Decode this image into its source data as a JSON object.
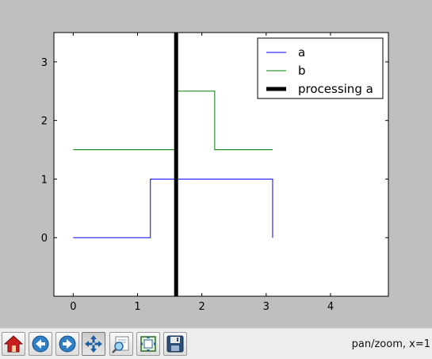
{
  "window": {
    "background": "#bfbfbf"
  },
  "chart_data": {
    "type": "line",
    "xlim": [
      -0.3,
      4.9
    ],
    "ylim": [
      -1,
      3.5
    ],
    "xticks": [
      0,
      1,
      2,
      3,
      4
    ],
    "yticks": [
      0,
      1,
      2,
      3
    ],
    "grid": false,
    "legend_position": "top-right",
    "series": [
      {
        "name": "a",
        "color": "#0000ff",
        "style": "step",
        "points": [
          [
            0,
            0
          ],
          [
            1.2,
            0
          ],
          [
            1.2,
            1
          ],
          [
            3.1,
            1
          ],
          [
            3.1,
            0
          ]
        ]
      },
      {
        "name": "b",
        "color": "#008000",
        "style": "step",
        "points": [
          [
            0,
            1.5
          ],
          [
            1.6,
            1.5
          ],
          [
            1.6,
            2.5
          ],
          [
            2.2,
            2.5
          ],
          [
            2.2,
            1.5
          ],
          [
            3.1,
            1.5
          ]
        ]
      },
      {
        "name": "processing a",
        "color": "#000000",
        "style": "vertical-line",
        "x": 1.6
      }
    ]
  },
  "toolbar": {
    "buttons": [
      {
        "name": "home-button",
        "icon": "home-icon"
      },
      {
        "name": "back-button",
        "icon": "back-arrow-icon"
      },
      {
        "name": "forward-button",
        "icon": "forward-arrow-icon"
      },
      {
        "name": "pan-button",
        "icon": "pan-arrows-icon",
        "active": true
      },
      {
        "name": "zoom-button",
        "icon": "zoom-rect-icon"
      },
      {
        "name": "subplots-button",
        "icon": "subplots-icon"
      },
      {
        "name": "save-button",
        "icon": "save-icon"
      }
    ],
    "status_text": "pan/zoom, x=1"
  }
}
